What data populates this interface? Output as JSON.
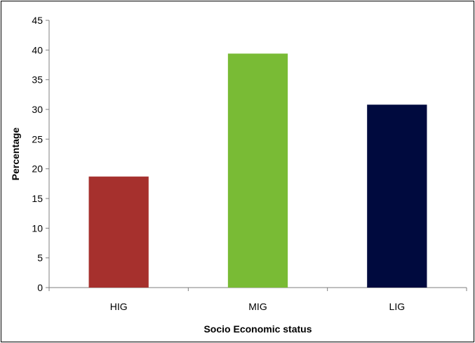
{
  "chart_data": {
    "type": "bar",
    "categories": [
      "HIG",
      "MIG",
      "LIG"
    ],
    "values": [
      18.7,
      39.4,
      30.8
    ],
    "colors": [
      "#a6302d",
      "#79bb35",
      "#000a3e"
    ],
    "title": "",
    "xlabel": "Socio Economic status",
    "ylabel": "Percentage",
    "ylim": [
      0,
      45
    ],
    "yticks": [
      0,
      5,
      10,
      15,
      20,
      25,
      30,
      35,
      40,
      45
    ],
    "grid": false,
    "legend": "none"
  }
}
